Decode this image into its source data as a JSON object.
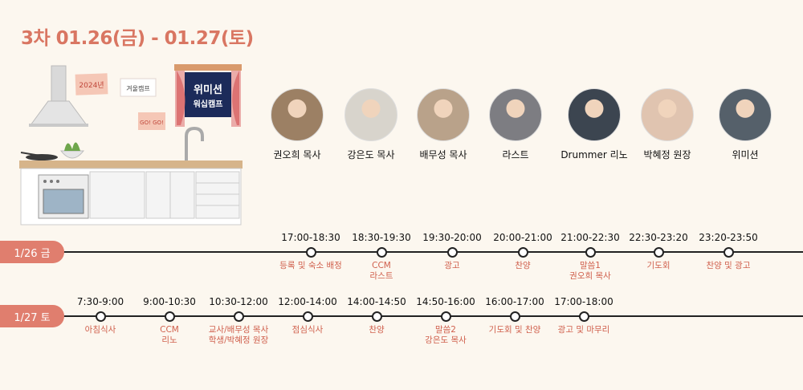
{
  "title": "3차 01.26(금) - 01.27(토)",
  "illustration": {
    "notes": [
      "2024년",
      "겨울캠프",
      "GO! GO!"
    ],
    "poster": [
      "위미션",
      "워십캠프"
    ]
  },
  "speakers": [
    {
      "name": "권오희 목사"
    },
    {
      "name": "강은도 목사"
    },
    {
      "name": "배무성 목사"
    },
    {
      "name": "라스트"
    },
    {
      "name": "Drummer 리노"
    },
    {
      "name": "박혜정 원장"
    },
    {
      "name": "위미션"
    }
  ],
  "days": [
    {
      "label": "1/26 금",
      "slots": [
        {
          "time": "17:00-18:30",
          "event": [
            "등록 및 숙소 배정"
          ]
        },
        {
          "time": "18:30-19:30",
          "event": [
            "CCM",
            "라스트"
          ]
        },
        {
          "time": "19:30-20:00",
          "event": [
            "광고"
          ]
        },
        {
          "time": "20:00-21:00",
          "event": [
            "찬양"
          ]
        },
        {
          "time": "21:00-22:30",
          "event": [
            "말씀1",
            "권오희 목사"
          ]
        },
        {
          "time": "22:30-23:20",
          "event": [
            "기도회"
          ]
        },
        {
          "time": "23:20-23:50",
          "event": [
            "찬양 및 광고"
          ]
        }
      ]
    },
    {
      "label": "1/27 토",
      "slots": [
        {
          "time": "7:30-9:00",
          "event": [
            "아침식사"
          ]
        },
        {
          "time": "9:00-10:30",
          "event": [
            "CCM",
            "리노"
          ]
        },
        {
          "time": "10:30-12:00",
          "event": [
            "교사/배무성 목사",
            "학생/박혜정 원장"
          ]
        },
        {
          "time": "12:00-14:00",
          "event": [
            "점심식사"
          ]
        },
        {
          "time": "14:00-14:50",
          "event": [
            "찬양"
          ]
        },
        {
          "time": "14:50-16:00",
          "event": [
            "말씀2",
            "강은도 목사"
          ]
        },
        {
          "time": "16:00-17:00",
          "event": [
            "기도회 및 찬양"
          ]
        },
        {
          "time": "17:00-18:00",
          "event": [
            "광고 및 마무리"
          ]
        }
      ]
    }
  ]
}
